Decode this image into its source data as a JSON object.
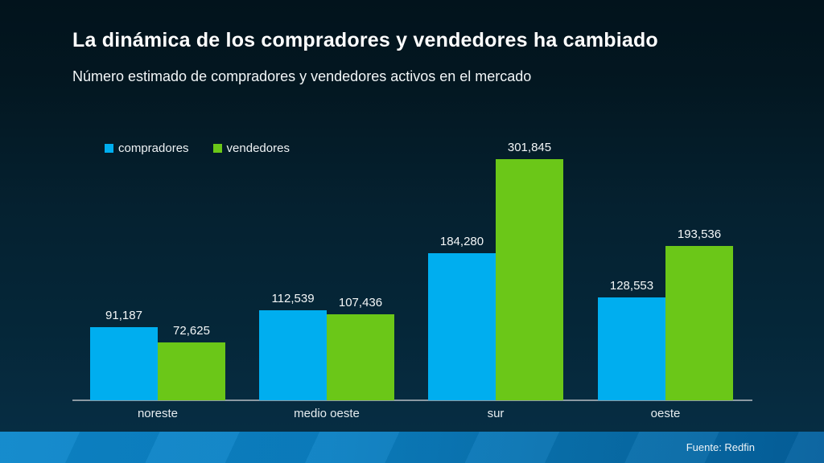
{
  "chart_data": {
    "type": "bar",
    "title": "La dinámica de los compradores y vendedores ha cambiado",
    "subtitle": "Número estimado de compradores y vendedores activos en el mercado",
    "source": "Fuente: Redfin",
    "categories": [
      "noreste",
      "medio oeste",
      "sur",
      "oeste"
    ],
    "series": [
      {
        "name": "compradores",
        "color": "#00AEEF",
        "values": [
          91187,
          112539,
          184280,
          128553
        ],
        "labels": [
          "91,187",
          "112,539",
          "184,280",
          "128,553"
        ]
      },
      {
        "name": "vendedores",
        "color": "#6BC718",
        "values": [
          72625,
          107436,
          301845,
          193536
        ],
        "labels": [
          "72,625",
          "107,436",
          "301,845",
          "193,536"
        ]
      }
    ],
    "xlabel": "",
    "ylabel": "",
    "ylim": [
      0,
      310000
    ],
    "grid": false,
    "legend_position": "top-left",
    "value_labels_shown": true,
    "colors": {
      "background_top": "#02131C",
      "background_bottom": "#072F46",
      "axis_line": "#8B99A2",
      "footer_left": "#0D87CB",
      "footer_right": "#04609D",
      "text": "#FFFFFF"
    }
  }
}
